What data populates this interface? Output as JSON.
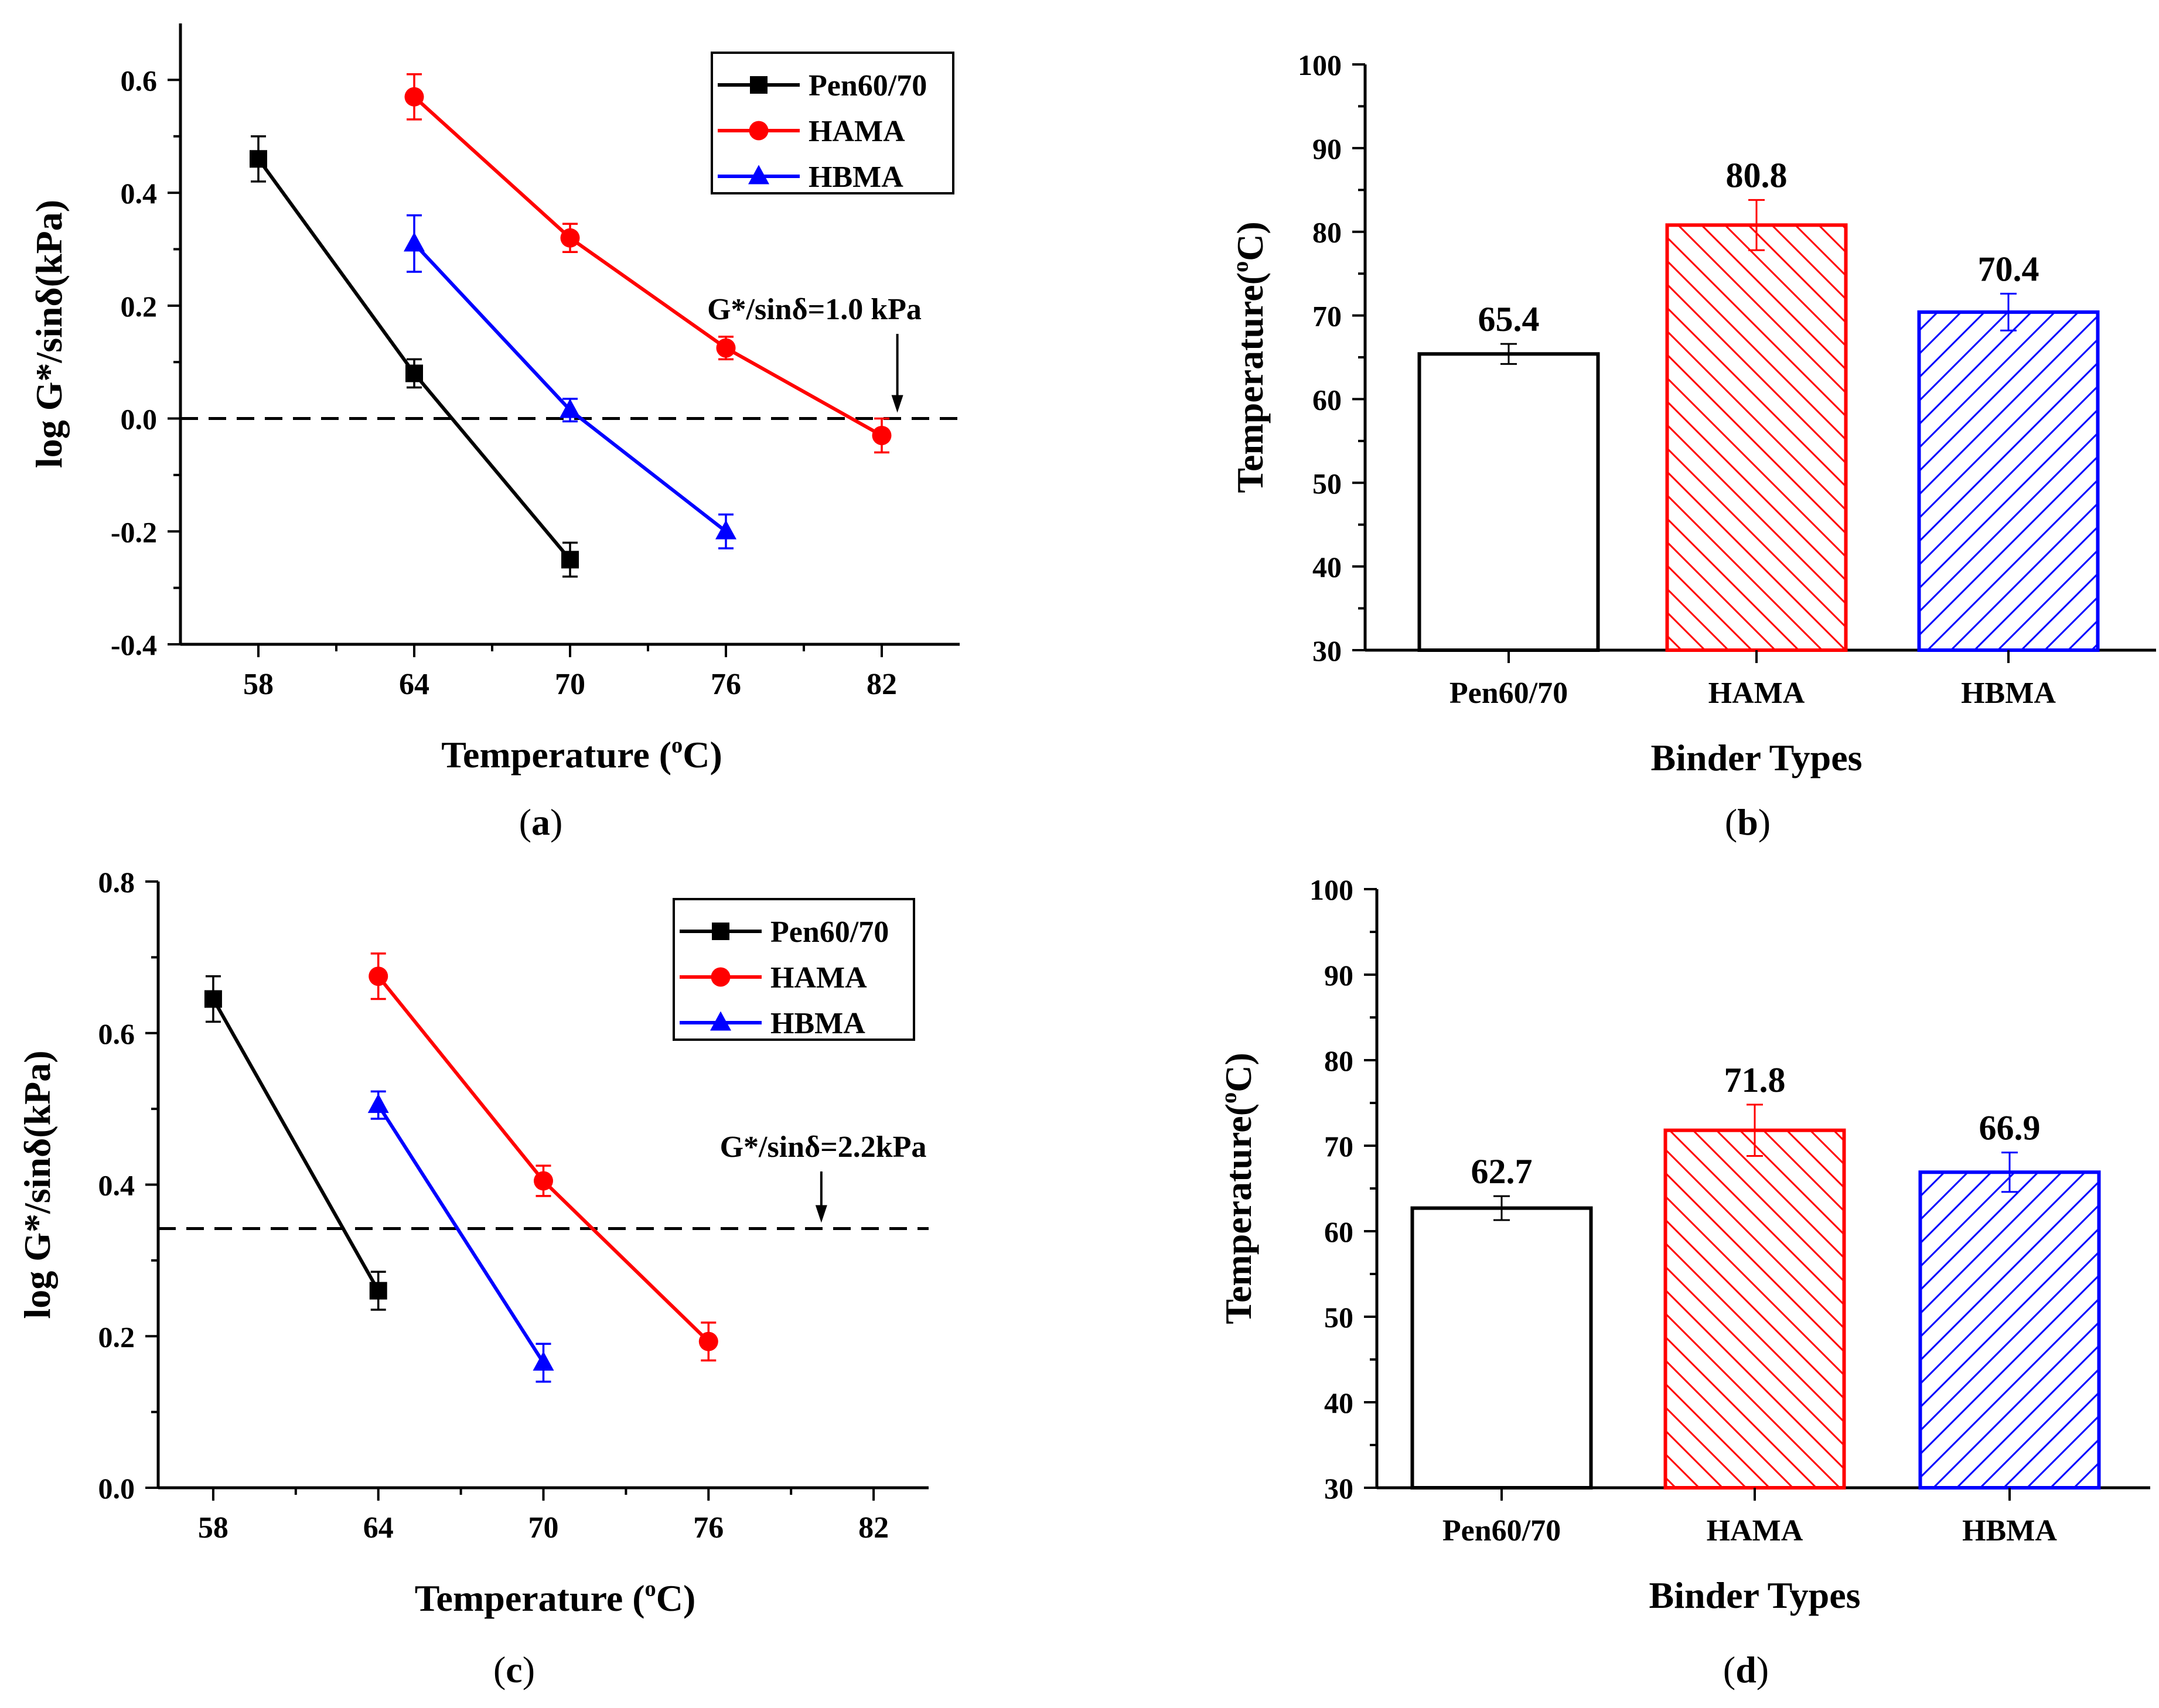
{
  "chart_data": [
    {
      "id": "a",
      "type": "line",
      "panel_label": "(a)",
      "xlabel": "Temperature (",
      "xlabel_sup": "o",
      "xlabel_end": "C)",
      "ylabel": "log G*/sinδ(kPa)",
      "xlim": [
        55,
        85
      ],
      "ylim": [
        -0.4,
        0.7
      ],
      "xticks": [
        58,
        64,
        70,
        76,
        82
      ],
      "yticks": [
        -0.4,
        -0.2,
        0.0,
        0.2,
        0.4,
        0.6
      ],
      "ytick_labels": [
        "-0.4",
        "-0.2",
        "0.0",
        "0.2",
        "0.4",
        "0.6"
      ],
      "threshold": {
        "y": 0.0,
        "label": "G*/sinδ=1.0 kPa",
        "arrow_x": 82.6
      },
      "legend_position": "top-right",
      "series": [
        {
          "name": "Pen60/70",
          "color": "#000000",
          "marker": "square",
          "x": [
            58,
            64,
            70
          ],
          "y": [
            0.46,
            0.08,
            -0.25
          ],
          "err": [
            0.04,
            0.025,
            0.03
          ]
        },
        {
          "name": "HAMA",
          "color": "#ff0000",
          "marker": "circle",
          "x": [
            64,
            70,
            76,
            82
          ],
          "y": [
            0.57,
            0.32,
            0.125,
            -0.03
          ],
          "err": [
            0.04,
            0.025,
            0.02,
            0.03
          ]
        },
        {
          "name": "HBMA",
          "color": "#0000ff",
          "marker": "triangle",
          "x": [
            64,
            70,
            76
          ],
          "y": [
            0.31,
            0.015,
            -0.2
          ],
          "err": [
            0.05,
            0.02,
            0.03
          ]
        }
      ]
    },
    {
      "id": "b",
      "type": "bar",
      "panel_label": "(b)",
      "xlabel": "Binder Types",
      "ylabel": "Temperature(",
      "ylabel_sup": "o",
      "ylabel_end": "C)",
      "ylim": [
        30,
        100
      ],
      "yticks": [
        30,
        40,
        50,
        60,
        70,
        80,
        90,
        100
      ],
      "categories": [
        "Pen60/70",
        "HAMA",
        "HBMA"
      ],
      "values": [
        65.4,
        80.8,
        70.4
      ],
      "value_labels": [
        "65.4",
        "80.8",
        "70.4"
      ],
      "errors": [
        1.2,
        3.0,
        2.2
      ],
      "colors": [
        "#000000",
        "#ff0000",
        "#0000ff"
      ],
      "hatch": [
        "none",
        "back",
        "forward"
      ]
    },
    {
      "id": "c",
      "type": "line",
      "panel_label": "(c)",
      "xlabel": "Temperature (",
      "xlabel_sup": "o",
      "xlabel_end": "C)",
      "ylabel": "log G*/sinδ(kPa)",
      "xlim": [
        56,
        84
      ],
      "ylim": [
        0.0,
        0.8
      ],
      "xticks": [
        58,
        64,
        70,
        76,
        82
      ],
      "yticks": [
        0.0,
        0.2,
        0.4,
        0.6,
        0.8
      ],
      "ytick_labels": [
        "0.0",
        "0.2",
        "0.4",
        "0.6",
        "0.8"
      ],
      "threshold": {
        "y": 0.342,
        "label": "G*/sinδ=2.2kPa",
        "arrow_x": 80.1
      },
      "legend_position": "top-right",
      "series": [
        {
          "name": "Pen60/70",
          "color": "#000000",
          "marker": "square",
          "x": [
            58,
            64
          ],
          "y": [
            0.645,
            0.26
          ],
          "err": [
            0.03,
            0.025
          ]
        },
        {
          "name": "HAMA",
          "color": "#ff0000",
          "marker": "circle",
          "x": [
            64,
            70,
            76
          ],
          "y": [
            0.675,
            0.405,
            0.193
          ],
          "err": [
            0.03,
            0.02,
            0.025
          ]
        },
        {
          "name": "HBMA",
          "color": "#0000ff",
          "marker": "triangle",
          "x": [
            64,
            70
          ],
          "y": [
            0.505,
            0.165
          ],
          "err": [
            0.018,
            0.025
          ]
        }
      ]
    },
    {
      "id": "d",
      "type": "bar",
      "panel_label": "(d)",
      "xlabel": "Binder Types",
      "ylabel": "Temperature(",
      "ylabel_sup": "o",
      "ylabel_end": "C)",
      "ylim": [
        30,
        100
      ],
      "yticks": [
        30,
        40,
        50,
        60,
        70,
        80,
        90,
        100
      ],
      "categories": [
        "Pen60/70",
        "HAMA",
        "HBMA"
      ],
      "values": [
        62.7,
        71.8,
        66.9
      ],
      "value_labels": [
        "62.7",
        "71.8",
        "66.9"
      ],
      "errors": [
        1.4,
        3.0,
        2.3
      ],
      "colors": [
        "#000000",
        "#ff0000",
        "#0000ff"
      ],
      "hatch": [
        "none",
        "back",
        "forward"
      ]
    }
  ]
}
